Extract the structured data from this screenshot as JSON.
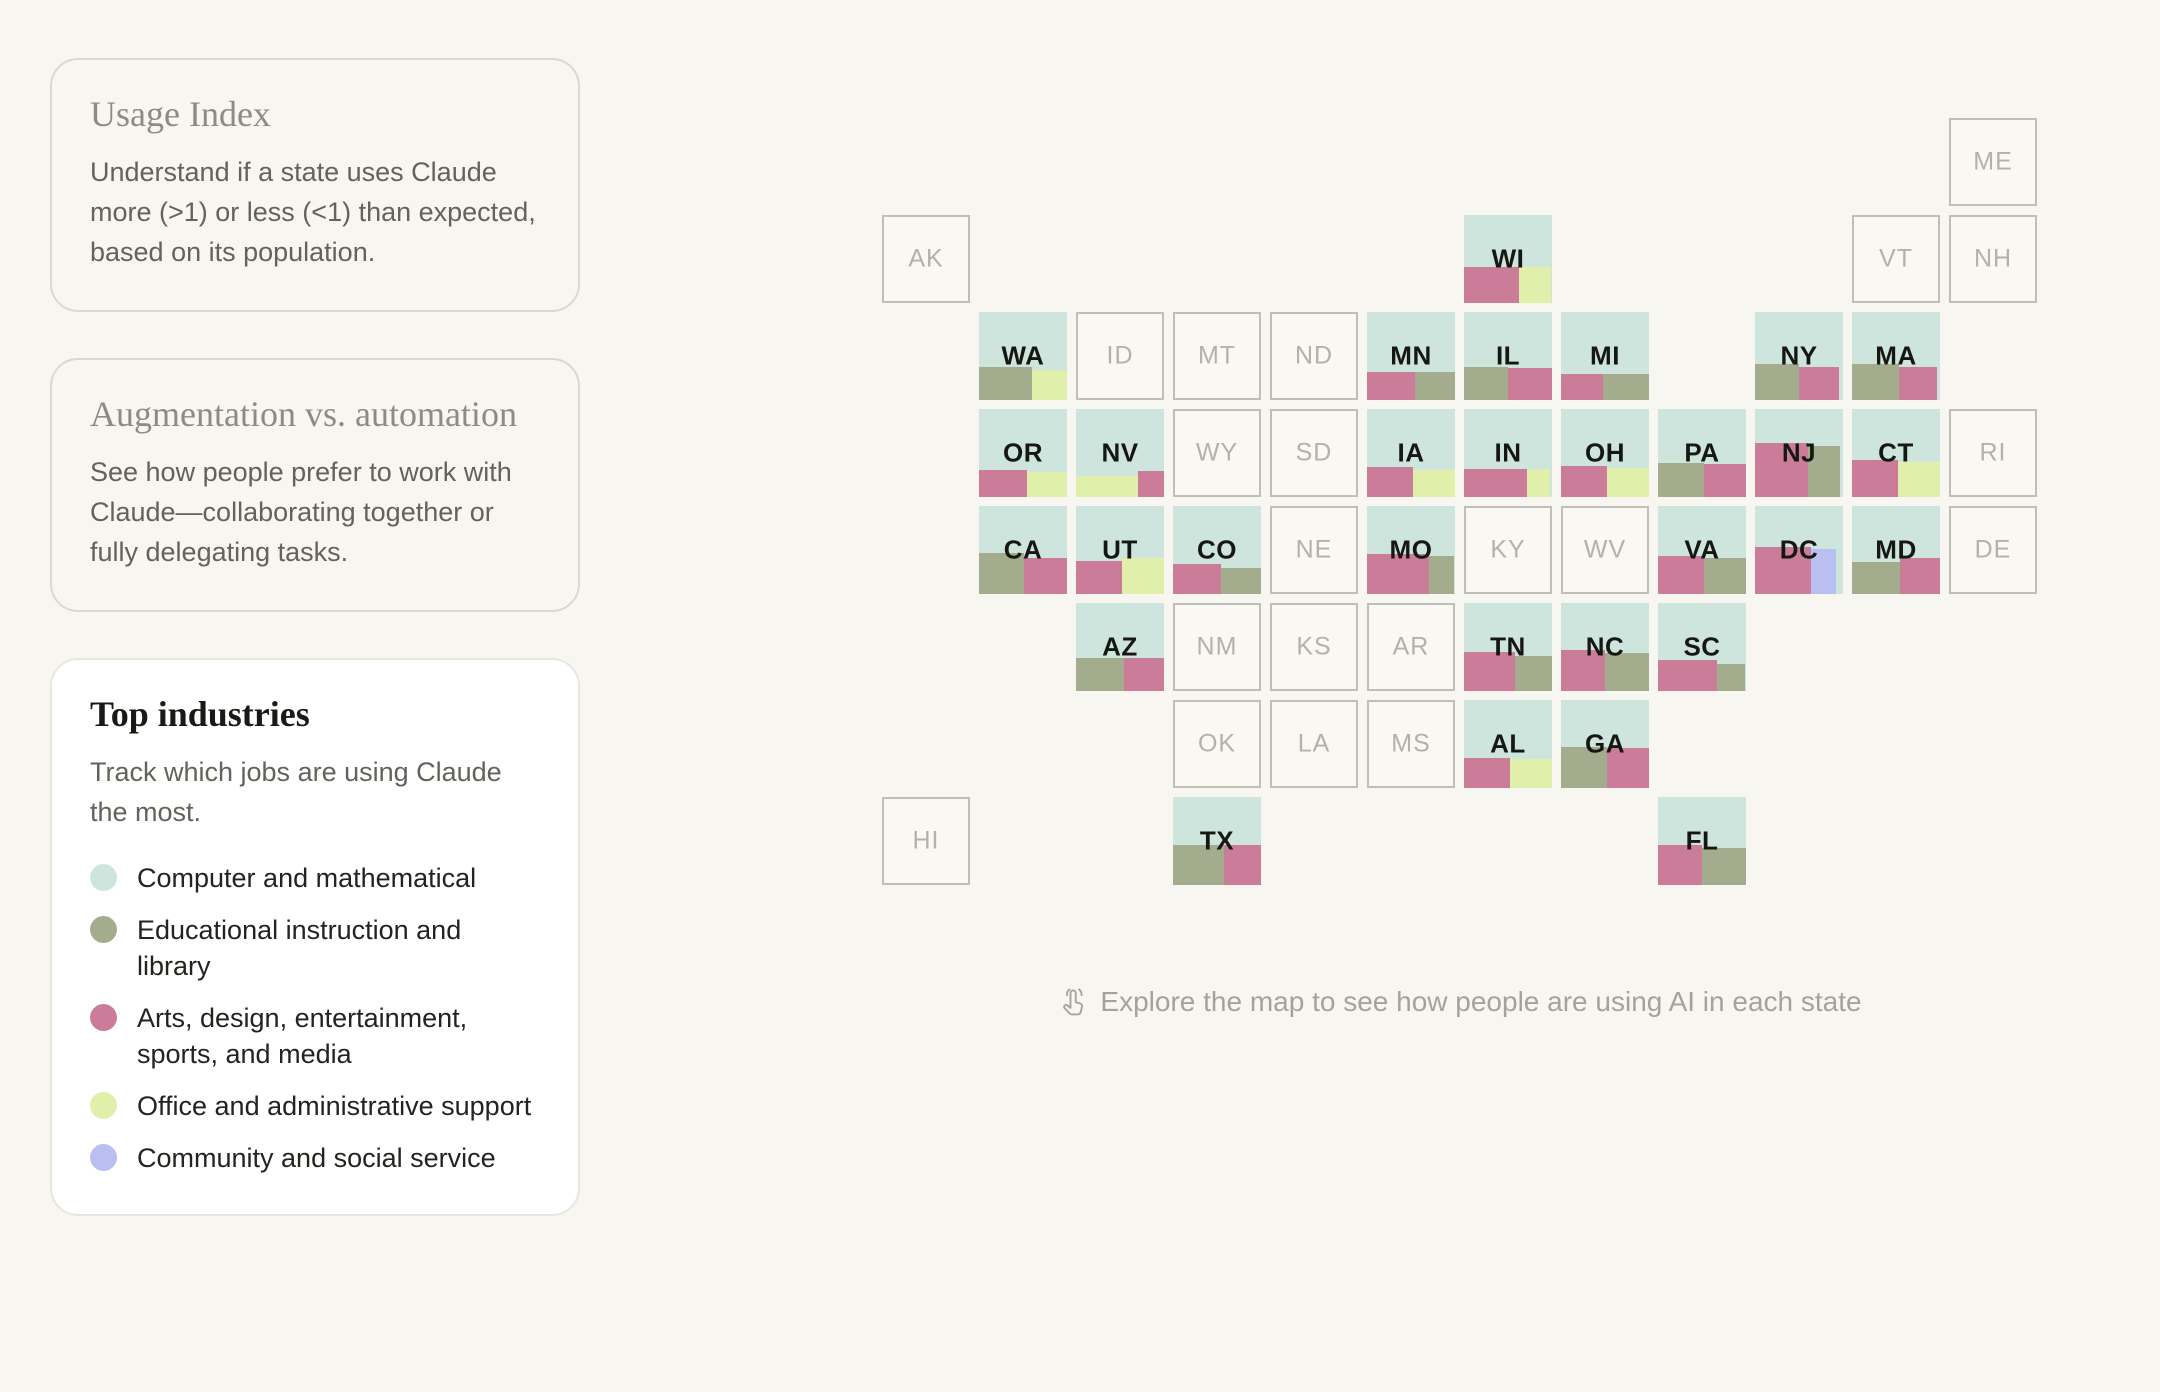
{
  "page": {
    "background": "#f8f6f0"
  },
  "cards": {
    "usage_index": {
      "title": "Usage Index",
      "body": "Understand if a state uses Claude more (>1) or less (<1) than expected, based on its population.",
      "selected": false
    },
    "aug_auto": {
      "title": "Augmentation vs. automation",
      "body": "See how people prefer to work with Claude—collaborating together or fully delegating tasks.",
      "selected": false
    },
    "top_industries": {
      "title": "Top industries",
      "body": "Track which jobs are using Claude the most.",
      "selected": true
    }
  },
  "industry_colors": {
    "computer": "#cee5dd",
    "education": "#a3ad8d",
    "arts": "#cb7c98",
    "office": "#e0efaa",
    "community": "#babff2"
  },
  "legend": [
    {
      "key": "computer",
      "label": "Computer and mathematical"
    },
    {
      "key": "education",
      "label": "Educational instruction and library"
    },
    {
      "key": "arts",
      "label": "Arts, design, entertainment, sports, and media"
    },
    {
      "key": "office",
      "label": "Office and administrative support"
    },
    {
      "key": "community",
      "label": "Community and social service"
    }
  ],
  "map": {
    "hint": "Explore the map to see how people are using AI in each state",
    "inactive_style": {
      "background": "#faf8f3",
      "border": "#c1beb8",
      "text": "#b3b1ab"
    },
    "active_bg_industry": "computer",
    "states": [
      {
        "abbr": "ME",
        "row": 0,
        "col": 11,
        "active": false
      },
      {
        "abbr": "AK",
        "row": 1,
        "col": 0,
        "active": false
      },
      {
        "abbr": "WI",
        "row": 1,
        "col": 6,
        "active": true,
        "blocks": [
          {
            "industry": "arts",
            "w": 0.63,
            "h": 0.41
          },
          {
            "industry": "office",
            "w": 0.36,
            "h": 0.41
          }
        ]
      },
      {
        "abbr": "VT",
        "row": 1,
        "col": 10,
        "active": false
      },
      {
        "abbr": "NH",
        "row": 1,
        "col": 11,
        "active": false
      },
      {
        "abbr": "WA",
        "row": 2,
        "col": 1,
        "active": true,
        "blocks": [
          {
            "industry": "education",
            "w": 0.6,
            "h": 0.37
          },
          {
            "industry": "office",
            "w": 0.4,
            "h": 0.34
          }
        ]
      },
      {
        "abbr": "ID",
        "row": 2,
        "col": 2,
        "active": false
      },
      {
        "abbr": "MT",
        "row": 2,
        "col": 3,
        "active": false
      },
      {
        "abbr": "ND",
        "row": 2,
        "col": 4,
        "active": false
      },
      {
        "abbr": "MN",
        "row": 2,
        "col": 5,
        "active": true,
        "blocks": [
          {
            "industry": "arts",
            "w": 0.55,
            "h": 0.32
          },
          {
            "industry": "education",
            "w": 0.45,
            "h": 0.32
          }
        ]
      },
      {
        "abbr": "IL",
        "row": 2,
        "col": 6,
        "active": true,
        "blocks": [
          {
            "industry": "education",
            "w": 0.5,
            "h": 0.38
          },
          {
            "industry": "arts",
            "w": 0.5,
            "h": 0.36
          }
        ]
      },
      {
        "abbr": "MI",
        "row": 2,
        "col": 7,
        "active": true,
        "blocks": [
          {
            "industry": "arts",
            "w": 0.48,
            "h": 0.3
          },
          {
            "industry": "education",
            "w": 0.52,
            "h": 0.3
          }
        ]
      },
      {
        "abbr": "NY",
        "row": 2,
        "col": 9,
        "active": true,
        "blocks": [
          {
            "industry": "education",
            "w": 0.5,
            "h": 0.41
          },
          {
            "industry": "arts",
            "w": 0.45,
            "h": 0.38
          }
        ]
      },
      {
        "abbr": "MA",
        "row": 2,
        "col": 10,
        "active": true,
        "blocks": [
          {
            "industry": "education",
            "w": 0.53,
            "h": 0.41
          },
          {
            "industry": "arts",
            "w": 0.44,
            "h": 0.37
          }
        ]
      },
      {
        "abbr": "OR",
        "row": 3,
        "col": 1,
        "active": true,
        "blocks": [
          {
            "industry": "arts",
            "w": 0.55,
            "h": 0.31
          },
          {
            "industry": "office",
            "w": 0.45,
            "h": 0.28
          }
        ]
      },
      {
        "abbr": "NV",
        "row": 3,
        "col": 2,
        "active": true,
        "blocks": [
          {
            "industry": "office",
            "w": 0.7,
            "h": 0.24
          },
          {
            "industry": "arts",
            "w": 0.3,
            "h": 0.29
          }
        ]
      },
      {
        "abbr": "WY",
        "row": 3,
        "col": 3,
        "active": false
      },
      {
        "abbr": "SD",
        "row": 3,
        "col": 4,
        "active": false
      },
      {
        "abbr": "IA",
        "row": 3,
        "col": 5,
        "active": true,
        "blocks": [
          {
            "industry": "arts",
            "w": 0.52,
            "h": 0.34
          },
          {
            "industry": "office",
            "w": 0.48,
            "h": 0.31
          }
        ]
      },
      {
        "abbr": "IN",
        "row": 3,
        "col": 6,
        "active": true,
        "blocks": [
          {
            "industry": "arts",
            "w": 0.72,
            "h": 0.32
          },
          {
            "industry": "office",
            "w": 0.26,
            "h": 0.32
          }
        ]
      },
      {
        "abbr": "OH",
        "row": 3,
        "col": 7,
        "active": true,
        "blocks": [
          {
            "industry": "arts",
            "w": 0.52,
            "h": 0.35
          },
          {
            "industry": "office",
            "w": 0.48,
            "h": 0.33
          }
        ]
      },
      {
        "abbr": "PA",
        "row": 3,
        "col": 8,
        "active": true,
        "blocks": [
          {
            "industry": "education",
            "w": 0.52,
            "h": 0.39
          },
          {
            "industry": "arts",
            "w": 0.48,
            "h": 0.38
          }
        ]
      },
      {
        "abbr": "NJ",
        "row": 3,
        "col": 9,
        "active": true,
        "blocks": [
          {
            "industry": "arts",
            "w": 0.6,
            "h": 0.61
          },
          {
            "industry": "education",
            "w": 0.37,
            "h": 0.58
          }
        ]
      },
      {
        "abbr": "CT",
        "row": 3,
        "col": 10,
        "active": true,
        "blocks": [
          {
            "industry": "arts",
            "w": 0.52,
            "h": 0.42
          },
          {
            "industry": "office",
            "w": 0.48,
            "h": 0.4
          }
        ]
      },
      {
        "abbr": "RI",
        "row": 3,
        "col": 11,
        "active": false
      },
      {
        "abbr": "CA",
        "row": 4,
        "col": 1,
        "active": true,
        "blocks": [
          {
            "industry": "education",
            "w": 0.51,
            "h": 0.47
          },
          {
            "industry": "arts",
            "w": 0.49,
            "h": 0.41
          }
        ]
      },
      {
        "abbr": "UT",
        "row": 4,
        "col": 2,
        "active": true,
        "blocks": [
          {
            "industry": "arts",
            "w": 0.52,
            "h": 0.37
          },
          {
            "industry": "office",
            "w": 0.48,
            "h": 0.41
          }
        ]
      },
      {
        "abbr": "CO",
        "row": 4,
        "col": 3,
        "active": true,
        "blocks": [
          {
            "industry": "arts",
            "w": 0.55,
            "h": 0.34
          },
          {
            "industry": "education",
            "w": 0.45,
            "h": 0.3
          }
        ]
      },
      {
        "abbr": "NE",
        "row": 4,
        "col": 4,
        "active": false
      },
      {
        "abbr": "MO",
        "row": 4,
        "col": 5,
        "active": true,
        "blocks": [
          {
            "industry": "arts",
            "w": 0.7,
            "h": 0.46
          },
          {
            "industry": "education",
            "w": 0.29,
            "h": 0.43
          }
        ]
      },
      {
        "abbr": "KY",
        "row": 4,
        "col": 6,
        "active": false
      },
      {
        "abbr": "WV",
        "row": 4,
        "col": 7,
        "active": false
      },
      {
        "abbr": "VA",
        "row": 4,
        "col": 8,
        "active": true,
        "blocks": [
          {
            "industry": "arts",
            "w": 0.52,
            "h": 0.43
          },
          {
            "industry": "education",
            "w": 0.48,
            "h": 0.41
          }
        ]
      },
      {
        "abbr": "DC",
        "row": 4,
        "col": 9,
        "active": true,
        "blocks": [
          {
            "industry": "arts",
            "w": 0.64,
            "h": 0.53
          },
          {
            "industry": "community",
            "w": 0.28,
            "h": 0.51
          }
        ]
      },
      {
        "abbr": "MD",
        "row": 4,
        "col": 10,
        "active": true,
        "blocks": [
          {
            "industry": "education",
            "w": 0.55,
            "h": 0.36
          },
          {
            "industry": "arts",
            "w": 0.45,
            "h": 0.41
          }
        ]
      },
      {
        "abbr": "DE",
        "row": 4,
        "col": 11,
        "active": false
      },
      {
        "abbr": "AZ",
        "row": 5,
        "col": 2,
        "active": true,
        "blocks": [
          {
            "industry": "education",
            "w": 0.55,
            "h": 0.37
          },
          {
            "industry": "arts",
            "w": 0.45,
            "h": 0.37
          }
        ]
      },
      {
        "abbr": "NM",
        "row": 5,
        "col": 3,
        "active": false
      },
      {
        "abbr": "KS",
        "row": 5,
        "col": 4,
        "active": false
      },
      {
        "abbr": "AR",
        "row": 5,
        "col": 5,
        "active": false
      },
      {
        "abbr": "TN",
        "row": 5,
        "col": 6,
        "active": true,
        "blocks": [
          {
            "industry": "arts",
            "w": 0.58,
            "h": 0.44
          },
          {
            "industry": "education",
            "w": 0.42,
            "h": 0.4
          }
        ]
      },
      {
        "abbr": "NC",
        "row": 5,
        "col": 7,
        "active": true,
        "blocks": [
          {
            "industry": "arts",
            "w": 0.5,
            "h": 0.47
          },
          {
            "industry": "education",
            "w": 0.5,
            "h": 0.43
          }
        ]
      },
      {
        "abbr": "SC",
        "row": 5,
        "col": 8,
        "active": true,
        "blocks": [
          {
            "industry": "arts",
            "w": 0.67,
            "h": 0.35
          },
          {
            "industry": "education",
            "w": 0.32,
            "h": 0.31
          }
        ]
      },
      {
        "abbr": "OK",
        "row": 6,
        "col": 3,
        "active": false
      },
      {
        "abbr": "LA",
        "row": 6,
        "col": 4,
        "active": false
      },
      {
        "abbr": "MS",
        "row": 6,
        "col": 5,
        "active": false
      },
      {
        "abbr": "AL",
        "row": 6,
        "col": 6,
        "active": true,
        "blocks": [
          {
            "industry": "arts",
            "w": 0.52,
            "h": 0.34
          },
          {
            "industry": "office",
            "w": 0.48,
            "h": 0.33
          }
        ]
      },
      {
        "abbr": "GA",
        "row": 6,
        "col": 7,
        "active": true,
        "blocks": [
          {
            "industry": "education",
            "w": 0.52,
            "h": 0.47
          },
          {
            "industry": "arts",
            "w": 0.48,
            "h": 0.45
          }
        ]
      },
      {
        "abbr": "HI",
        "row": 7,
        "col": 0,
        "active": false
      },
      {
        "abbr": "TX",
        "row": 7,
        "col": 3,
        "active": true,
        "blocks": [
          {
            "industry": "education",
            "w": 0.58,
            "h": 0.46
          },
          {
            "industry": "arts",
            "w": 0.42,
            "h": 0.46
          }
        ]
      },
      {
        "abbr": "FL",
        "row": 7,
        "col": 8,
        "active": true,
        "blocks": [
          {
            "industry": "arts",
            "w": 0.5,
            "h": 0.46
          },
          {
            "industry": "education",
            "w": 0.5,
            "h": 0.42
          }
        ]
      }
    ]
  }
}
